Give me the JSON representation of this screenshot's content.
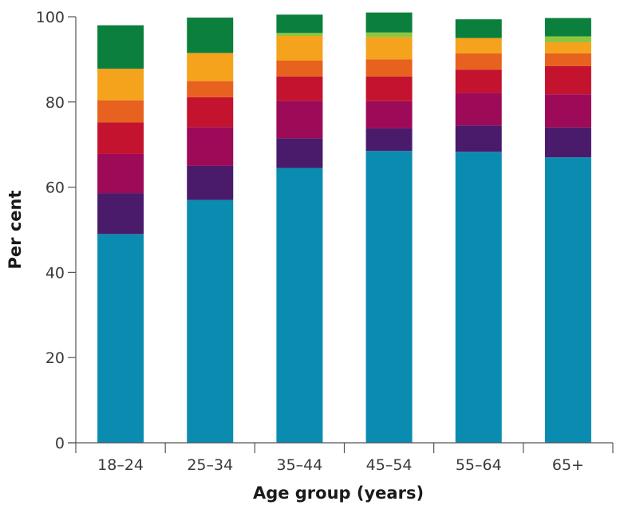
{
  "chart_data": {
    "type": "bar",
    "stacked": true,
    "xlabel": "Age group (years)",
    "ylabel": "Per cent",
    "ylim": [
      0,
      100
    ],
    "yticks": [
      0,
      20,
      40,
      60,
      80,
      100
    ],
    "grid": false,
    "categories": [
      "18–24",
      "25–34",
      "35–44",
      "45–54",
      "55–64",
      "65+"
    ],
    "series": [
      {
        "color": "#0a8cb0",
        "values": [
          49,
          57,
          64.5,
          68.5,
          68.3,
          67
        ]
      },
      {
        "color": "#4a1a6b",
        "values": [
          9.6,
          8,
          7,
          5.3,
          6.2,
          7
        ]
      },
      {
        "color": "#9c0a58",
        "values": [
          9.2,
          9.1,
          8.8,
          6.4,
          7.6,
          7.8
        ]
      },
      {
        "color": "#c3132e",
        "values": [
          7.4,
          7,
          5.7,
          5.8,
          5.5,
          6.6
        ]
      },
      {
        "color": "#e7611f",
        "values": [
          5.2,
          3.8,
          3.7,
          4,
          3.8,
          3
        ]
      },
      {
        "color": "#f5a21c",
        "values": [
          7.4,
          6.6,
          5.8,
          5.2,
          3.6,
          2.6
        ]
      },
      {
        "color": "#8cc63e",
        "values": [
          0,
          0,
          0.7,
          1.1,
          0,
          1.4
        ]
      },
      {
        "color": "#0b7f3c",
        "values": [
          10.2,
          8.3,
          4.3,
          4.7,
          4.4,
          4.3
        ]
      }
    ]
  }
}
